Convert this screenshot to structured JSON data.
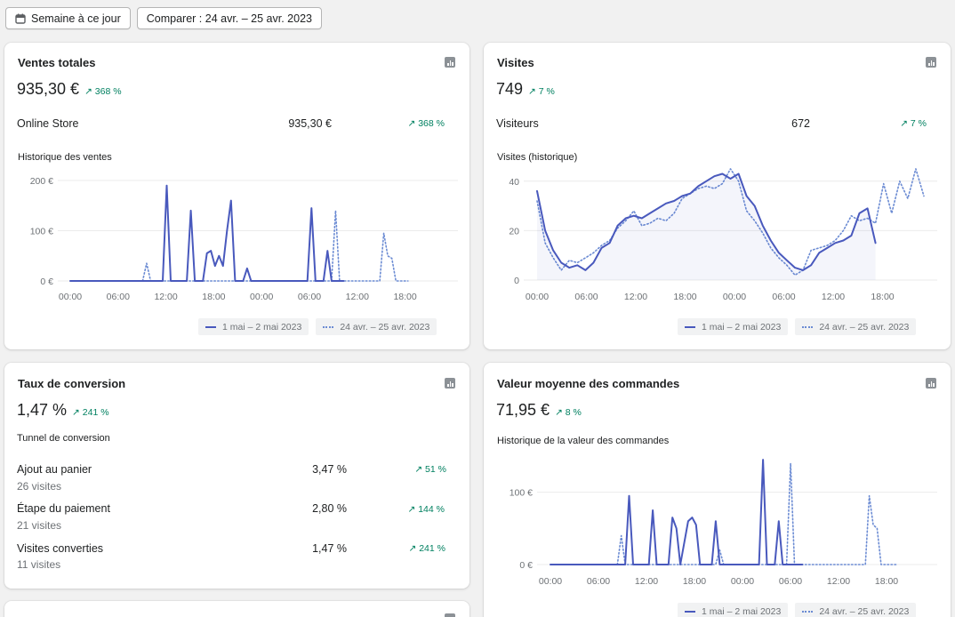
{
  "toolbar": {
    "date_button": "Semaine à ce jour",
    "compare_button": "Comparer : 24 avr. – 25 avr. 2023"
  },
  "legend": {
    "current": "1 mai – 2 mai 2023",
    "previous": "24 avr. – 25 avr. 2023"
  },
  "x_ticks": [
    "00:00",
    "06:00",
    "12:00",
    "18:00",
    "00:00",
    "06:00",
    "12:00",
    "18:00"
  ],
  "colors": {
    "current": "#4959bd",
    "previous": "#6b8bd3",
    "positive": "#008060"
  },
  "sales": {
    "title": "Ventes totales",
    "value": "935,30 €",
    "delta": "↗ 368 %",
    "row_label": "Online Store",
    "row_value": "935,30 €",
    "row_delta": "↗ 368 %",
    "chart_title": "Historique des ventes"
  },
  "visits": {
    "title": "Visites",
    "value": "749",
    "delta": "↗ 7 %",
    "row_label": "Visiteurs",
    "row_value": "672",
    "row_delta": "↗ 7 %",
    "chart_title": "Visites (historique)"
  },
  "conversion": {
    "title": "Taux de conversion",
    "value": "1,47 %",
    "delta": "↗ 241 %",
    "funnel_title": "Tunnel de conversion",
    "rows": [
      {
        "label": "Ajout au panier",
        "sub": "26 visites",
        "value": "3,47 %",
        "delta": "↗ 51 %"
      },
      {
        "label": "Étape du paiement",
        "sub": "21 visites",
        "value": "2,80 %",
        "delta": "↗ 144 %"
      },
      {
        "label": "Visites converties",
        "sub": "11 visites",
        "value": "1,47 %",
        "delta": "↗ 241 %"
      }
    ]
  },
  "aov": {
    "title": "Valeur moyenne des commandes",
    "value": "71,95 €",
    "delta": "↗ 8 %",
    "chart_title": "Historique de la valeur des commandes"
  },
  "chart_data": [
    {
      "type": "line",
      "title": "Historique des ventes",
      "x_hours": [
        0,
        48
      ],
      "y_ticks": [
        "0 €",
        "100 €",
        "200 €"
      ],
      "ylim": [
        0,
        200
      ],
      "series": [
        {
          "name": "1 mai – 2 mai 2023",
          "style": "solid",
          "values": [
            [
              0,
              0
            ],
            [
              11,
              0
            ],
            [
              11.5,
              0
            ],
            [
              12,
              190
            ],
            [
              12.5,
              0
            ],
            [
              14.5,
              0
            ],
            [
              15,
              140
            ],
            [
              15.5,
              0
            ],
            [
              16.5,
              0
            ],
            [
              17,
              55
            ],
            [
              17.5,
              60
            ],
            [
              18,
              30
            ],
            [
              18.5,
              50
            ],
            [
              19,
              30
            ],
            [
              19.5,
              100
            ],
            [
              20,
              160
            ],
            [
              20.5,
              0
            ],
            [
              21.5,
              0
            ],
            [
              22,
              25
            ],
            [
              22.5,
              0
            ],
            [
              29.5,
              0
            ],
            [
              30,
              145
            ],
            [
              30.5,
              0
            ],
            [
              31.5,
              0
            ],
            [
              32,
              60
            ],
            [
              32.5,
              0
            ],
            [
              34,
              0
            ]
          ]
        },
        {
          "name": "24 avr. – 25 avr. 2023",
          "style": "dotted",
          "values": [
            [
              9,
              0
            ],
            [
              9.5,
              35
            ],
            [
              10,
              0
            ],
            [
              32.5,
              0
            ],
            [
              33,
              140
            ],
            [
              33.5,
              0
            ],
            [
              38.5,
              0
            ],
            [
              39,
              95
            ],
            [
              39.5,
              50
            ],
            [
              40,
              45
            ],
            [
              40.5,
              0
            ],
            [
              42,
              0
            ]
          ]
        }
      ]
    },
    {
      "type": "line",
      "title": "Visites (historique)",
      "x_hours": [
        0,
        48
      ],
      "y_ticks": [
        "0",
        "20",
        "40"
      ],
      "ylim": [
        0,
        50
      ],
      "series": [
        {
          "name": "1 mai – 2 mai 2023",
          "style": "solid",
          "values": [
            [
              0,
              36
            ],
            [
              1,
              20
            ],
            [
              2,
              12
            ],
            [
              3,
              7
            ],
            [
              4,
              5
            ],
            [
              5,
              6
            ],
            [
              6,
              4
            ],
            [
              7,
              7
            ],
            [
              8,
              13
            ],
            [
              9,
              15
            ],
            [
              10,
              22
            ],
            [
              11,
              25
            ],
            [
              12,
              26
            ],
            [
              13,
              25
            ],
            [
              14,
              27
            ],
            [
              15,
              29
            ],
            [
              16,
              31
            ],
            [
              17,
              32
            ],
            [
              18,
              34
            ],
            [
              19,
              35
            ],
            [
              20,
              38
            ],
            [
              21,
              40
            ],
            [
              22,
              42
            ],
            [
              23,
              43
            ],
            [
              24,
              41
            ],
            [
              25,
              43
            ],
            [
              26,
              34
            ],
            [
              27,
              30
            ],
            [
              28,
              22
            ],
            [
              29,
              16
            ],
            [
              30,
              11
            ],
            [
              31,
              8
            ],
            [
              32,
              5
            ],
            [
              33,
              4
            ],
            [
              34,
              6
            ],
            [
              35,
              11
            ],
            [
              36,
              13
            ],
            [
              37,
              15
            ],
            [
              38,
              16
            ],
            [
              39,
              18
            ],
            [
              40,
              27
            ],
            [
              41,
              29
            ],
            [
              42,
              15
            ]
          ]
        },
        {
          "name": "24 avr. – 25 avr. 2023",
          "style": "dotted",
          "values": [
            [
              0,
              32
            ],
            [
              1,
              15
            ],
            [
              2,
              9
            ],
            [
              3,
              4
            ],
            [
              4,
              8
            ],
            [
              5,
              7
            ],
            [
              6,
              9
            ],
            [
              7,
              11
            ],
            [
              8,
              14
            ],
            [
              9,
              16
            ],
            [
              10,
              21
            ],
            [
              11,
              24
            ],
            [
              12,
              28
            ],
            [
              13,
              22
            ],
            [
              14,
              23
            ],
            [
              15,
              25
            ],
            [
              16,
              24
            ],
            [
              17,
              27
            ],
            [
              18,
              33
            ],
            [
              19,
              35
            ],
            [
              20,
              37
            ],
            [
              21,
              38
            ],
            [
              22,
              37
            ],
            [
              23,
              39
            ],
            [
              24,
              45
            ],
            [
              25,
              40
            ],
            [
              26,
              28
            ],
            [
              27,
              24
            ],
            [
              28,
              19
            ],
            [
              29,
              13
            ],
            [
              30,
              9
            ],
            [
              31,
              6
            ],
            [
              32,
              2
            ],
            [
              33,
              4
            ],
            [
              34,
              12
            ],
            [
              35,
              13
            ],
            [
              36,
              14
            ],
            [
              37,
              16
            ],
            [
              38,
              20
            ],
            [
              39,
              26
            ],
            [
              40,
              24
            ],
            [
              41,
              25
            ],
            [
              42,
              23
            ],
            [
              43,
              39
            ],
            [
              44,
              27
            ],
            [
              45,
              40
            ],
            [
              46,
              33
            ],
            [
              47,
              45
            ],
            [
              48,
              34
            ]
          ]
        }
      ]
    },
    {
      "type": "line",
      "title": "Historique de la valeur des commandes",
      "x_hours": [
        0,
        48
      ],
      "y_ticks": [
        "0 €",
        "100 €"
      ],
      "ylim": [
        0,
        150
      ],
      "series": [
        {
          "name": "1 mai – 2 mai 2023",
          "style": "solid",
          "values": [
            [
              0,
              0
            ],
            [
              9,
              0
            ],
            [
              9.5,
              0
            ],
            [
              10,
              95
            ],
            [
              10.5,
              0
            ],
            [
              12.5,
              0
            ],
            [
              13,
              75
            ],
            [
              13.5,
              0
            ],
            [
              15,
              0
            ],
            [
              15.5,
              65
            ],
            [
              16,
              50
            ],
            [
              16.5,
              0
            ],
            [
              17.5,
              60
            ],
            [
              18,
              65
            ],
            [
              18.5,
              55
            ],
            [
              19,
              0
            ],
            [
              20.5,
              0
            ],
            [
              21,
              60
            ],
            [
              21.5,
              0
            ],
            [
              26.5,
              0
            ],
            [
              27,
              145
            ],
            [
              27.5,
              0
            ],
            [
              28.5,
              0
            ],
            [
              29,
              60
            ],
            [
              29.5,
              0
            ],
            [
              32,
              0
            ]
          ]
        },
        {
          "name": "24 avr. – 25 avr. 2023",
          "style": "dotted",
          "values": [
            [
              8.5,
              0
            ],
            [
              9,
              40
            ],
            [
              9.5,
              0
            ],
            [
              21,
              0
            ],
            [
              21.5,
              20
            ],
            [
              22,
              0
            ],
            [
              30,
              0
            ],
            [
              30.5,
              140
            ],
            [
              31,
              0
            ],
            [
              40,
              0
            ],
            [
              40.5,
              95
            ],
            [
              41,
              55
            ],
            [
              41.5,
              50
            ],
            [
              42,
              0
            ],
            [
              44,
              0
            ]
          ]
        }
      ]
    }
  ]
}
